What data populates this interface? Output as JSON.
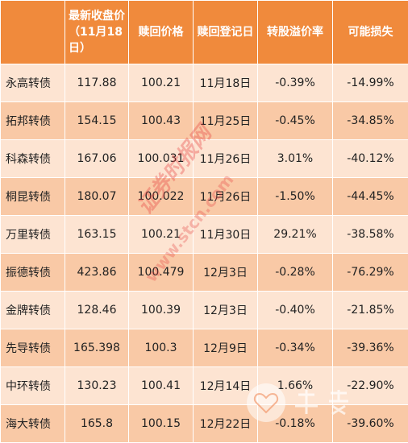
{
  "headers": [
    "最新收盘价（11月18日）",
    "赎回价格",
    "赎回登记日",
    "转股溢价率",
    "可能损失"
  ],
  "rows": [
    {
      "name": "永高转债",
      "close": "117.88",
      "redeem_price": "100.21",
      "record_date": "11月18日",
      "premium": "-0.39%",
      "loss": "-14.99%"
    },
    {
      "name": "拓邦转债",
      "close": "154.15",
      "redeem_price": "100.43",
      "record_date": "11月25日",
      "premium": "-0.45%",
      "loss": "-34.85%"
    },
    {
      "name": "科森转债",
      "close": "167.06",
      "redeem_price": "100.031",
      "record_date": "11月26日",
      "premium": "3.01%",
      "loss": "-40.12%"
    },
    {
      "name": "桐昆转债",
      "close": "180.07",
      "redeem_price": "100.022",
      "record_date": "11月26日",
      "premium": "-1.50%",
      "loss": "-44.45%"
    },
    {
      "name": "万里转债",
      "close": "163.15",
      "redeem_price": "100.21",
      "record_date": "11月30日",
      "premium": "29.21%",
      "loss": "-38.58%"
    },
    {
      "name": "振德转债",
      "close": "423.86",
      "redeem_price": "100.479",
      "record_date": "12月3日",
      "premium": "-0.28%",
      "loss": "-76.29%"
    },
    {
      "name": "金牌转债",
      "close": "128.46",
      "redeem_price": "100.39",
      "record_date": "12月3日",
      "premium": "-0.40%",
      "loss": "-21.85%"
    },
    {
      "name": "先导转债",
      "close": "165.398",
      "redeem_price": "100.3",
      "record_date": "12月9日",
      "premium": "-0.34%",
      "loss": "-39.36%"
    },
    {
      "name": "中环转债",
      "close": "130.23",
      "redeem_price": "100.41",
      "record_date": "12月14日",
      "premium": "1.66%",
      "loss": "-22.90%"
    },
    {
      "name": "海大转债",
      "close": "165.8",
      "redeem_price": "100.15",
      "record_date": "12月22日",
      "premium": "-0.18%",
      "loss": "-39.60%"
    }
  ],
  "watermark": {
    "text": "证券时报网",
    "site": "www.stcn.com",
    "logo": "heart-logo"
  }
}
